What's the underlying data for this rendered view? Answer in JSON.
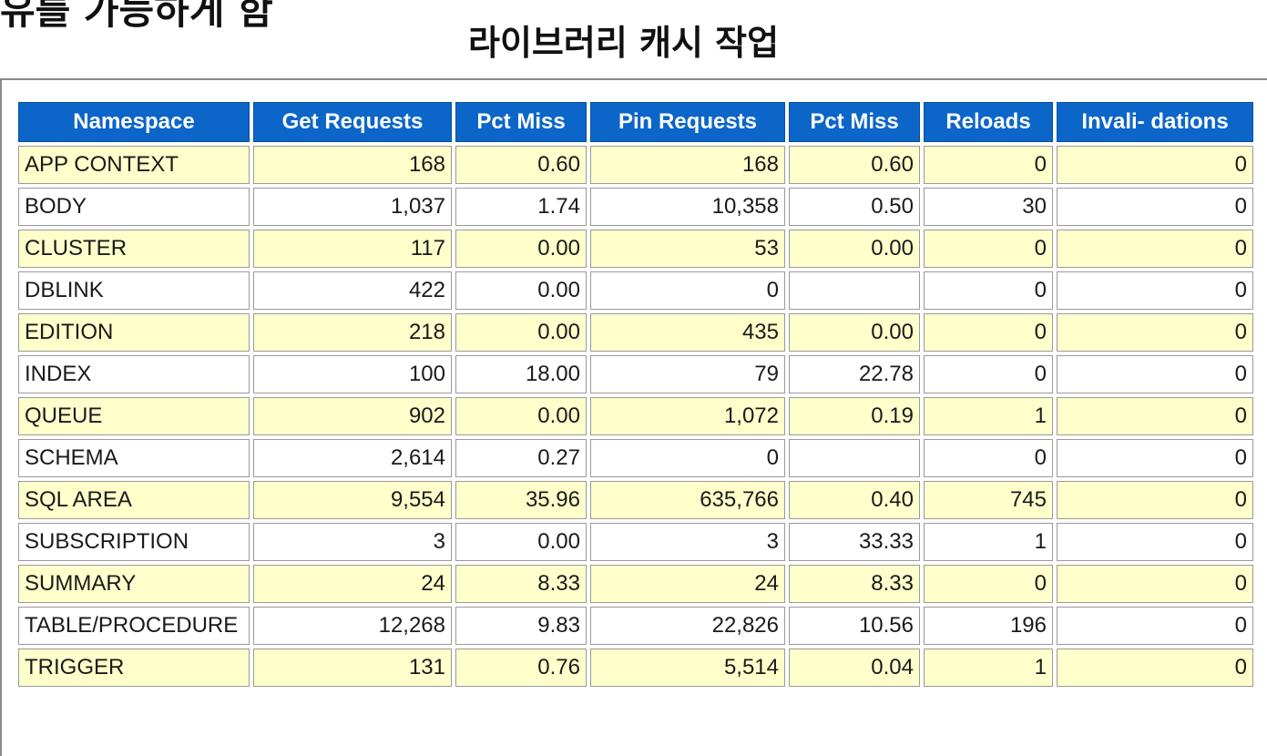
{
  "heading": {
    "partial": "유를 가능하게 함",
    "main": "라이브러리 캐시 작업"
  },
  "table": {
    "columns": [
      "Namespace",
      "Get Requests",
      "Pct Miss",
      "Pin Requests",
      "Pct Miss",
      "Reloads",
      "Invali- dations"
    ],
    "rows": [
      [
        "APP CONTEXT",
        "168",
        "0.60",
        "168",
        "0.60",
        "0",
        "0"
      ],
      [
        "BODY",
        "1,037",
        "1.74",
        "10,358",
        "0.50",
        "30",
        "0"
      ],
      [
        "CLUSTER",
        "117",
        "0.00",
        "53",
        "0.00",
        "0",
        "0"
      ],
      [
        "DBLINK",
        "422",
        "0.00",
        "0",
        "",
        "0",
        "0"
      ],
      [
        "EDITION",
        "218",
        "0.00",
        "435",
        "0.00",
        "0",
        "0"
      ],
      [
        "INDEX",
        "100",
        "18.00",
        "79",
        "22.78",
        "0",
        "0"
      ],
      [
        "QUEUE",
        "902",
        "0.00",
        "1,072",
        "0.19",
        "1",
        "0"
      ],
      [
        "SCHEMA",
        "2,614",
        "0.27",
        "0",
        "",
        "0",
        "0"
      ],
      [
        "SQL AREA",
        "9,554",
        "35.96",
        "635,766",
        "0.40",
        "745",
        "0"
      ],
      [
        "SUBSCRIPTION",
        "3",
        "0.00",
        "3",
        "33.33",
        "1",
        "0"
      ],
      [
        "SUMMARY",
        "24",
        "8.33",
        "24",
        "8.33",
        "0",
        "0"
      ],
      [
        "TABLE/PROCEDURE",
        "12,268",
        "9.83",
        "22,826",
        "10.56",
        "196",
        "0"
      ],
      [
        "TRIGGER",
        "131",
        "0.76",
        "5,514",
        "0.04",
        "1",
        "0"
      ]
    ]
  },
  "colors": {
    "header_bg": "#0c66c9",
    "header_text": "#ffffff",
    "row_alt_bg": "#ffffcc",
    "row_plain_bg": "#ffffff"
  }
}
